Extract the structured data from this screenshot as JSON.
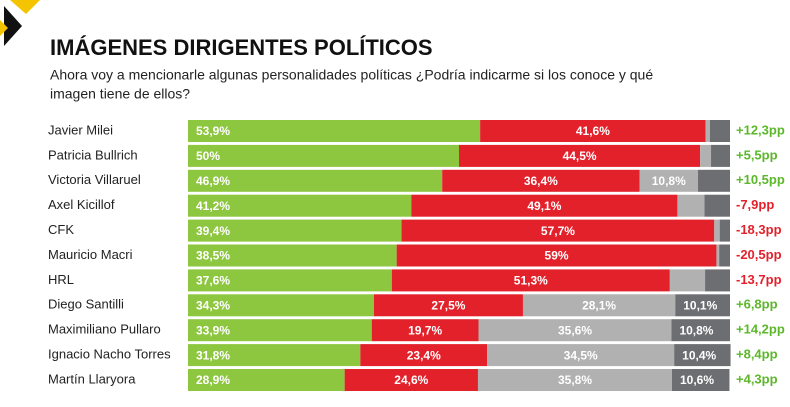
{
  "chart_data": {
    "type": "stacked-bar-horizontal",
    "title": "IMÁGENES DIRIGENTES POLÍTICOS",
    "subtitle": [
      "Ahora voy a mencionarle algunas personalidades políticas ¿Podría indicarme si los conoce y qué",
      "imagen tiene de ellos?"
    ],
    "categories": [
      "Javier Milei",
      "Patricia Bullrich",
      "Victoria Villaruel",
      "Axel Kicillof",
      "CFK",
      "Mauricio Macri",
      "HRL",
      "Diego Santilli",
      "Maximiliano Pullaro",
      "Ignacio Nacho Torres",
      "Martín Llaryora"
    ],
    "xlim": [
      0,
      100
    ],
    "series": [
      {
        "color": "#8dc63f",
        "values": [
          53.9,
          50,
          46.9,
          41.2,
          39.4,
          38.5,
          37.6,
          34.3,
          33.9,
          31.8,
          28.9
        ],
        "value_labels": [
          "53,9%",
          "50%",
          "46,9%",
          "41,2%",
          "39,4%",
          "38,5%",
          "37,6%",
          "34,3%",
          "33,9%",
          "31,8%",
          "28,9%"
        ]
      },
      {
        "color": "#e3212b",
        "values": [
          41.6,
          44.5,
          36.4,
          49.1,
          57.7,
          59,
          51.3,
          27.5,
          19.7,
          23.4,
          24.6
        ],
        "value_labels": [
          "41,6%",
          "44,5%",
          "36,4%",
          "49,1%",
          "57,7%",
          "59%",
          "51,3%",
          "27,5%",
          "19,7%",
          "23,4%",
          "24,6%"
        ]
      },
      {
        "color": "#b1b1b1",
        "values": [
          0.8,
          2,
          10.8,
          5,
          1,
          0.5,
          6.5,
          28.1,
          35.6,
          34.5,
          35.8
        ],
        "value_labels": [
          null,
          null,
          "10,8%",
          null,
          null,
          null,
          null,
          "28,1%",
          "35,6%",
          "34,5%",
          "35,8%"
        ]
      },
      {
        "color": "#6d6e71",
        "values": [
          3.7,
          3.5,
          5.9,
          4.7,
          1.9,
          2,
          4.6,
          10.1,
          10.8,
          10.4,
          10.6
        ],
        "value_labels": [
          null,
          null,
          null,
          null,
          null,
          null,
          null,
          "10,1%",
          "10,8%",
          "10,4%",
          "10,6%"
        ]
      }
    ],
    "differences": [
      "+12,3pp",
      "+5,5pp",
      "+10,5pp",
      "-7,9pp",
      "-18,3pp",
      "-20,5pp",
      "-13,7pp",
      "+6,8pp",
      "+14,2pp",
      "+8,4pp",
      "+4,3pp"
    ],
    "difference_colors": {
      "positive": "#5cb82a",
      "negative": "#e3212b"
    }
  }
}
